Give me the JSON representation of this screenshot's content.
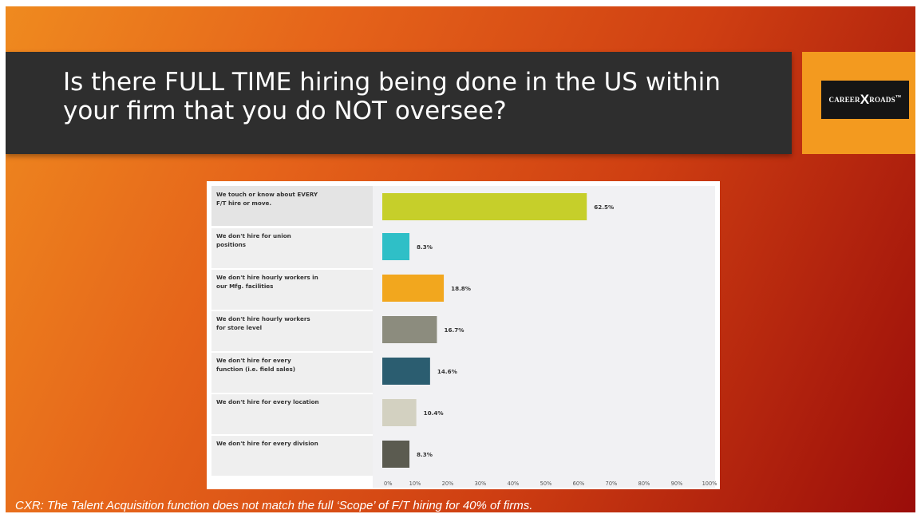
{
  "slide": {
    "title": "Is there FULL TIME hiring being done in the US within your firm that you do NOT oversee?",
    "footer": "CXR: The Talent Acquisition function does not match the full ‘Scope’ of F/T hiring for 40% of firms.",
    "logo": {
      "left": "CAREER",
      "mark": "X",
      "right": "ROADS",
      "sup": "™"
    }
  },
  "colors": {
    "background_start": "#ef8a1f",
    "background_end": "#9a0d0a",
    "title_bar": "#2e2e2e",
    "logo_box": "#f39a1f"
  },
  "chart_data": {
    "type": "bar",
    "orientation": "horizontal",
    "categories": [
      [
        "We touch or know about EVERY",
        "F/T hire or move."
      ],
      [
        "We don't hire for union",
        "positions"
      ],
      [
        "We don't hire hourly workers in",
        "our Mfg. facilities"
      ],
      [
        "We don't hire hourly workers",
        "for store level"
      ],
      [
        "We don't hire for every",
        "function (i.e. field sales)"
      ],
      [
        "We don't hire for every location"
      ],
      [
        "We don't hire for every division"
      ]
    ],
    "values": [
      62.5,
      8.3,
      18.8,
      16.7,
      14.6,
      10.4,
      8.3
    ],
    "value_labels": [
      "62.5%",
      "8.3%",
      "18.8%",
      "16.7%",
      "14.6%",
      "10.4%",
      "8.3%"
    ],
    "colors": [
      "#c6cf2a",
      "#2fbfc7",
      "#f2a71e",
      "#8c8c7e",
      "#2b5d70",
      "#d3d1c1",
      "#5b5b50"
    ],
    "xlim": [
      0,
      100
    ],
    "xticks": [
      "0%",
      "10%",
      "20%",
      "30%",
      "40%",
      "50%",
      "60%",
      "70%",
      "80%",
      "90%",
      "100%"
    ],
    "grid": false,
    "legend": false,
    "title": ""
  }
}
